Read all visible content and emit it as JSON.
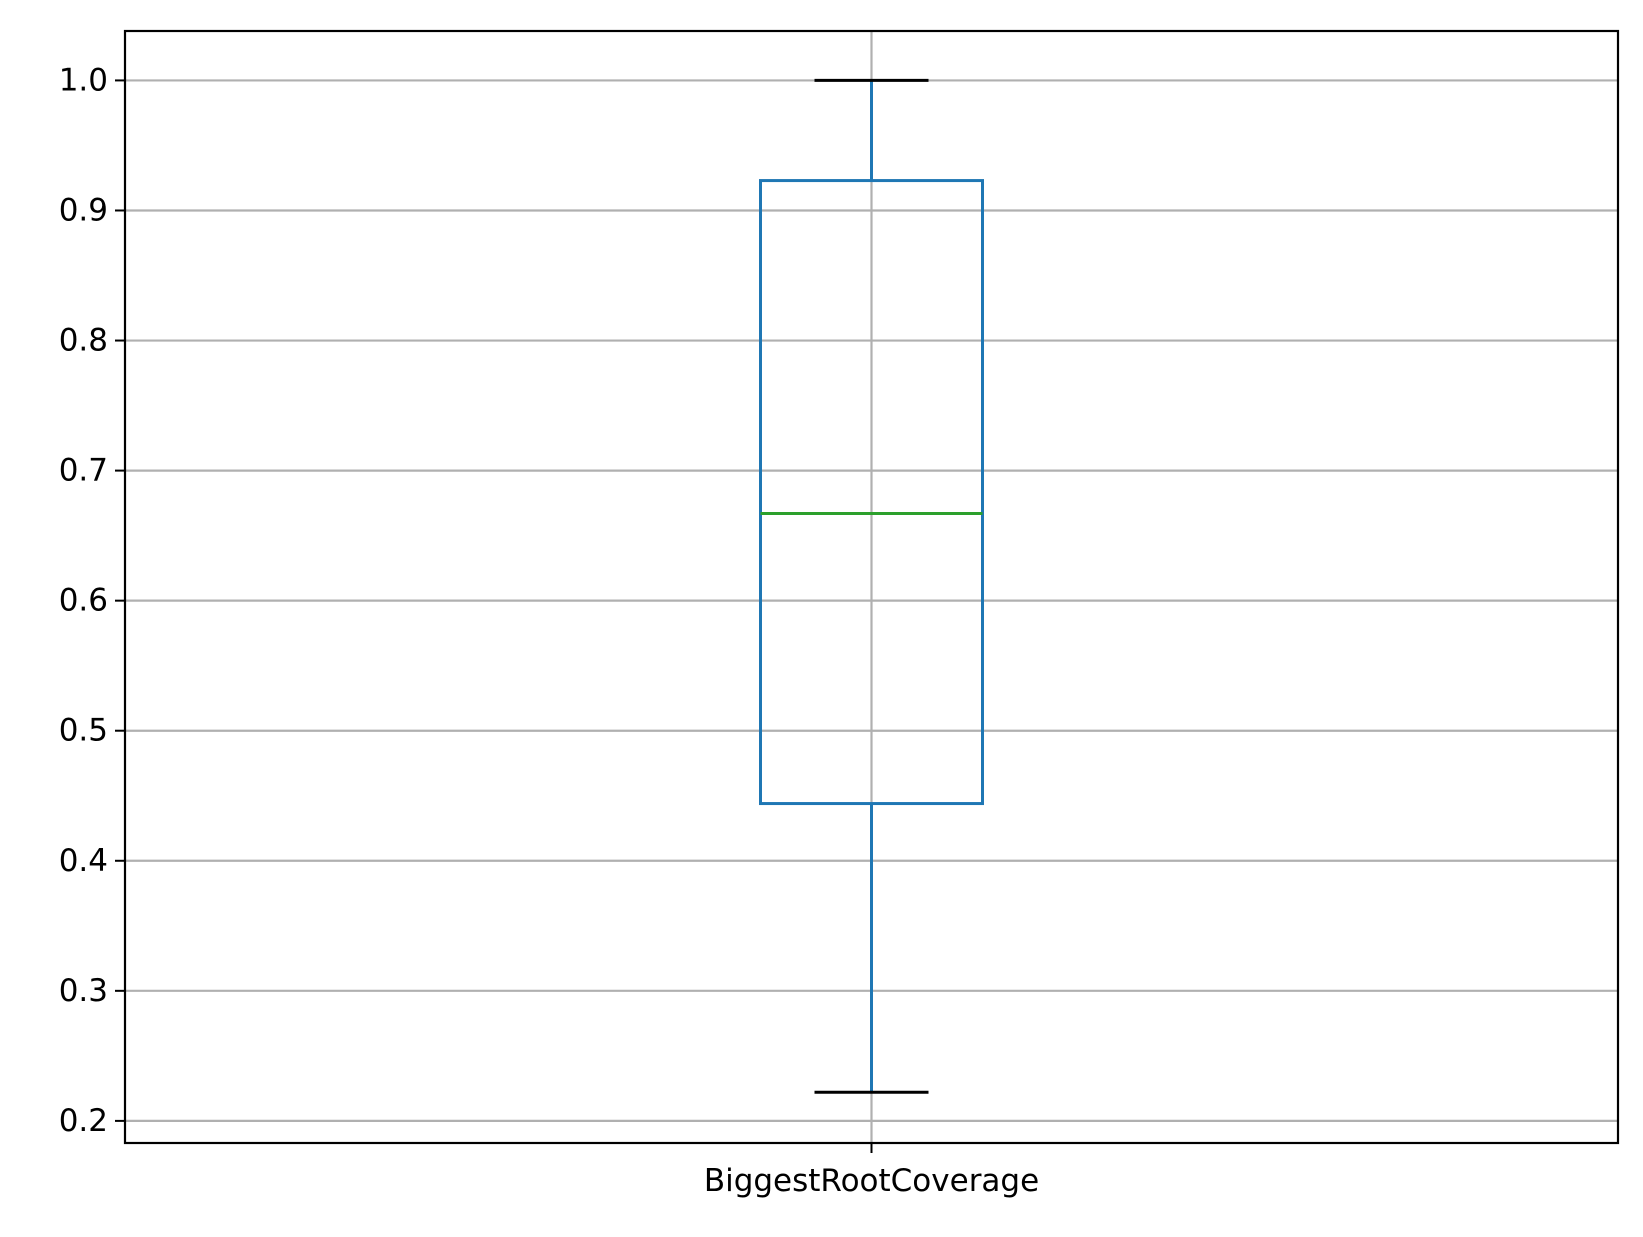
{
  "chart_data": {
    "type": "box",
    "categories": [
      "BiggestRootCoverage"
    ],
    "series": [
      {
        "category": "BiggestRootCoverage",
        "whisker_low": 0.222,
        "q1": 0.444,
        "median": 0.667,
        "q3": 0.923,
        "whisker_high": 1.0
      }
    ],
    "yticks": [
      "0.2",
      "0.3",
      "0.4",
      "0.5",
      "0.6",
      "0.7",
      "0.8",
      "0.9",
      "1.0"
    ],
    "ylim": [
      0.183,
      1.038
    ],
    "grid": true,
    "title": "",
    "xlabel": "",
    "ylabel": "",
    "colors": {
      "box": "#1f77b4",
      "median": "#2ca02c",
      "whisker_cap": "#000000",
      "grid": "#b0b0b0",
      "frame": "#000000"
    }
  }
}
